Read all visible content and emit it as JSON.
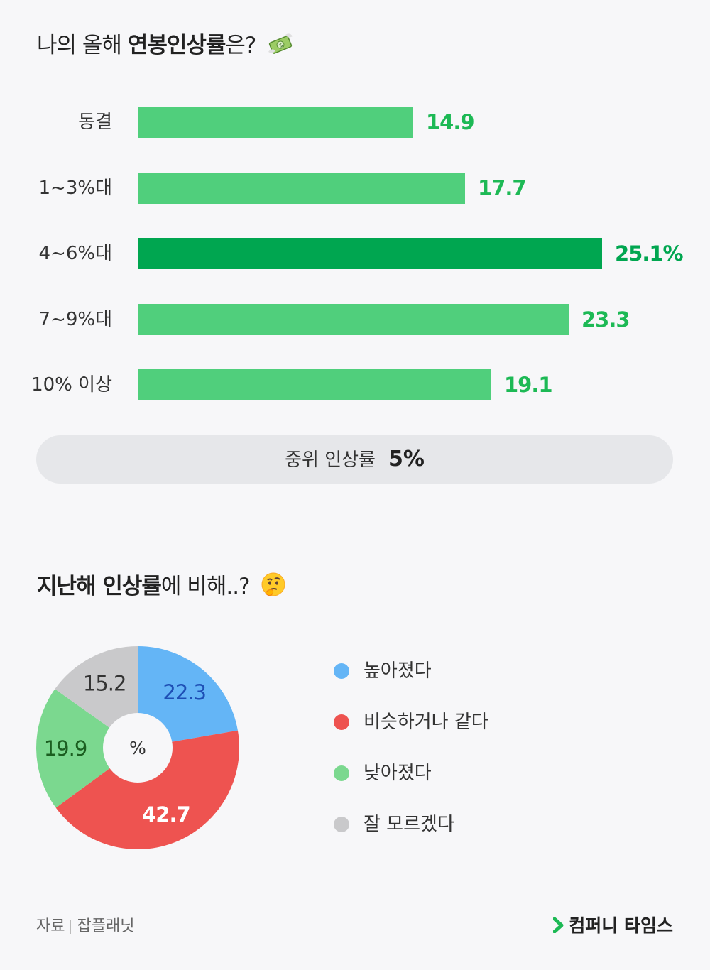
{
  "title1": {
    "prefix": "나의 올해 ",
    "bold": "연봉인상률",
    "suffix": "은?"
  },
  "title1_icon": "money-with-wings-icon",
  "chart_data": [
    {
      "type": "bar",
      "title": "나의 올해 연봉인상률은?",
      "categories": [
        "동결",
        "1~3%대",
        "4~6%대",
        "7~9%대",
        "10% 이상"
      ],
      "values": [
        14.9,
        17.7,
        25.1,
        23.3,
        19.1
      ],
      "value_labels": [
        "14.9",
        "17.7",
        "25.1%",
        "23.3",
        "19.1"
      ],
      "highlight_index": 2,
      "xlim": [
        0,
        25.1
      ],
      "colors": {
        "bar": "#50cf7c",
        "highlight": "#00a650",
        "value_text": "#1db955"
      }
    },
    {
      "type": "pie",
      "title": "지난해 인상률에 비해..?",
      "center_label": "%",
      "categories": [
        "높아졌다",
        "비슷하거나 같다",
        "낮아졌다",
        "잘 모르겠다"
      ],
      "values": [
        22.3,
        42.7,
        19.9,
        15.2
      ],
      "value_labels": [
        "22.3",
        "42.7",
        "19.9",
        "15.2"
      ],
      "colors": [
        "#64b5f6",
        "#ee5350",
        "#7bd88f",
        "#c9c9cb"
      ],
      "label_colors": [
        "#1e4fb5",
        "#ffffff",
        "#1b5e20",
        "#333333"
      ],
      "legend_placement": "right"
    }
  ],
  "median": {
    "label": "중위 인상률",
    "value": "5%"
  },
  "title2": {
    "bold": "지난해 인상률",
    "suffix": "에 비해..?"
  },
  "title2_icon": "thinking-face-icon",
  "footer": {
    "source_label": "자료",
    "source_name": "잡플래닛",
    "brand": "컴퍼니 타임스",
    "brand_icon": "chevron-right-icon"
  }
}
